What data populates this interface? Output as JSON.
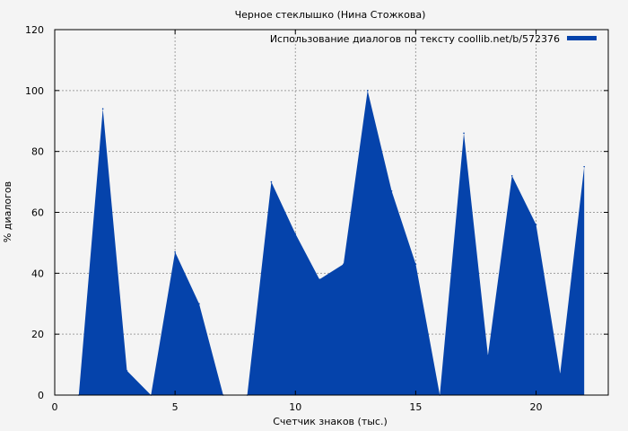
{
  "chart_data": {
    "type": "area",
    "title": "Черное стеклышко (Нина Стожкова)",
    "xlabel": "Счетчик знаков (тыс.)",
    "ylabel": "% диалогов",
    "xlim": [
      0,
      23
    ],
    "ylim": [
      0,
      120
    ],
    "xticks": [
      0,
      5,
      10,
      15,
      20
    ],
    "yticks": [
      0,
      20,
      40,
      60,
      80,
      100,
      120
    ],
    "grid": true,
    "legend_position": "top-right",
    "series": [
      {
        "name": "Использование диалогов по тексту coollib.net/b/572376",
        "color": "#0543ab",
        "x": [
          1,
          2,
          3,
          4,
          5,
          6,
          7,
          8,
          9,
          10,
          11,
          12,
          13,
          14,
          15,
          16,
          17,
          18,
          19,
          20,
          21,
          22
        ],
        "y": [
          0,
          94,
          8,
          0,
          47,
          30,
          0,
          0,
          70,
          53,
          38,
          43,
          100,
          67,
          43,
          0,
          86,
          13,
          72,
          56,
          7,
          75
        ]
      }
    ]
  }
}
